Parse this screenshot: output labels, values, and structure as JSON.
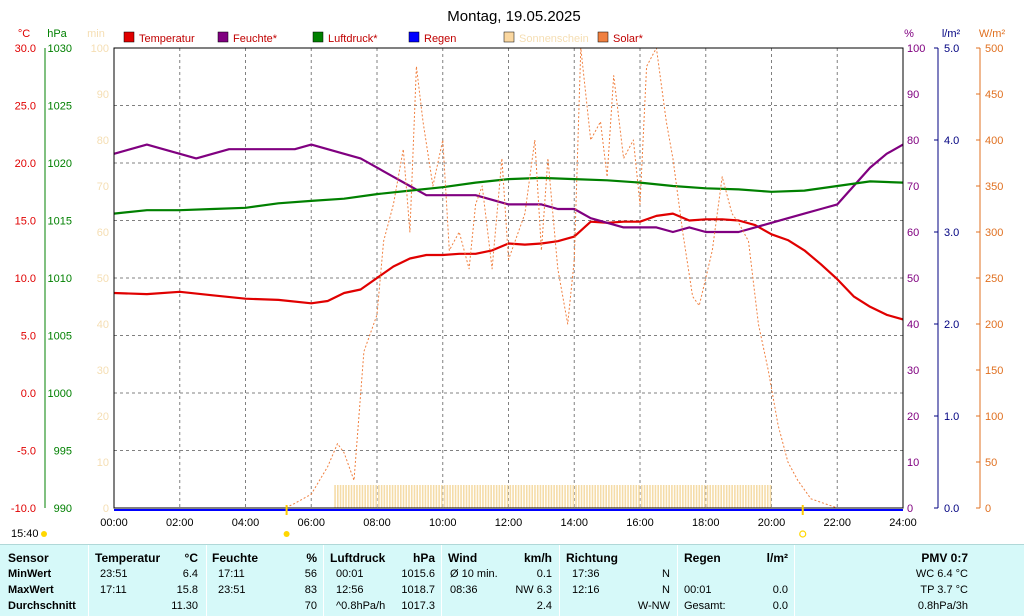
{
  "chart_data": {
    "type": "line",
    "title": "Montag, 19.05.2025",
    "x_ticks": [
      "00:00",
      "02:00",
      "04:00",
      "06:00",
      "08:00",
      "10:00",
      "12:00",
      "14:00",
      "16:00",
      "18:00",
      "20:00",
      "22:00",
      "24:00"
    ],
    "x_range": [
      0,
      24
    ],
    "grid": true,
    "legend": [
      {
        "name": "Temperatur",
        "color": "#e00000"
      },
      {
        "name": "Feuchte*",
        "color": "#800080"
      },
      {
        "name": "Luftdruck*",
        "color": "#008000"
      },
      {
        "name": "Regen",
        "color": "#0000ff"
      },
      {
        "name": "Sonnenschein",
        "color": "#fad7a0"
      },
      {
        "name": "Solar*",
        "color": "#f08040"
      }
    ],
    "axes": {
      "temp": {
        "unit": "°C",
        "color": "#e00000",
        "range": [
          -10,
          30
        ],
        "ticks": [
          "30.0",
          "25.0",
          "20.0",
          "15.0",
          "10.0",
          "5.0",
          "0.0",
          "-5.0",
          "-10.0"
        ]
      },
      "press": {
        "unit": "hPa",
        "color": "#008000",
        "range": [
          990,
          1030
        ],
        "ticks": [
          "1030",
          "1025",
          "1020",
          "1015",
          "1010",
          "1005",
          "1000",
          "995",
          "990"
        ]
      },
      "sun": {
        "unit": "min",
        "color": "#f5deb3",
        "range": [
          0,
          100
        ],
        "ticks": [
          "100",
          "90",
          "80",
          "70",
          "60",
          "50",
          "40",
          "30",
          "20",
          "10",
          "0"
        ]
      },
      "hum": {
        "unit": "%",
        "color": "#800080",
        "range": [
          0,
          100
        ],
        "ticks": [
          "100",
          "90",
          "80",
          "70",
          "60",
          "50",
          "40",
          "30",
          "20",
          "10",
          "0"
        ]
      },
      "rain": {
        "unit": "l/m²",
        "color": "#000080",
        "range": [
          0,
          5
        ],
        "ticks": [
          "5.0",
          "4.0",
          "3.0",
          "2.0",
          "1.0",
          "0.0"
        ]
      },
      "solar": {
        "unit": "W/m²",
        "color": "#e07020",
        "range": [
          0,
          500
        ],
        "ticks": [
          "500",
          "450",
          "400",
          "350",
          "300",
          "250",
          "200",
          "150",
          "100",
          "50",
          "0"
        ]
      }
    },
    "series": [
      {
        "name": "Temperatur",
        "axis": "temp",
        "color": "#e00000",
        "x": [
          0,
          1,
          2,
          3,
          4,
          5,
          6,
          6.5,
          7,
          7.5,
          8,
          8.5,
          9,
          9.5,
          10,
          10.5,
          11,
          11.5,
          12,
          12.5,
          13,
          13.5,
          14,
          14.5,
          15,
          15.5,
          16,
          16.5,
          17,
          17.5,
          18,
          18.5,
          19,
          19.5,
          20,
          20.5,
          21,
          21.5,
          22,
          22.5,
          23,
          23.5,
          24
        ],
        "y": [
          8.7,
          8.6,
          8.8,
          8.5,
          8.2,
          8.1,
          7.8,
          8.0,
          8.7,
          9.0,
          10.0,
          11.0,
          11.7,
          12.0,
          12.0,
          12.1,
          12.1,
          12.4,
          13.0,
          12.9,
          13.0,
          13.2,
          13.6,
          14.9,
          14.8,
          14.9,
          14.9,
          15.4,
          15.6,
          15.0,
          15.1,
          15.1,
          15.0,
          14.6,
          13.8,
          13.3,
          12.4,
          11.2,
          9.9,
          8.4,
          7.5,
          6.8,
          6.4
        ]
      },
      {
        "name": "Feuchte*",
        "axis": "hum",
        "color": "#800080",
        "x": [
          0,
          0.5,
          1,
          1.5,
          2,
          2.5,
          3,
          3.5,
          4,
          4.5,
          5,
          5.5,
          6,
          6.5,
          7,
          7.5,
          8,
          8.5,
          9,
          9.5,
          10,
          10.5,
          11,
          11.5,
          12,
          12.5,
          13,
          13.5,
          14,
          14.5,
          15,
          15.5,
          16,
          16.5,
          17,
          17.5,
          18,
          18.5,
          19,
          19.5,
          20,
          20.5,
          21,
          21.5,
          22,
          22.5,
          23,
          23.5,
          24
        ],
        "y": [
          77,
          78,
          79,
          78,
          77,
          76,
          77,
          78,
          78,
          78,
          78,
          78,
          79,
          78,
          77,
          76,
          74,
          72,
          70,
          68,
          68,
          68,
          68,
          67,
          66,
          66,
          66,
          65,
          65,
          63,
          62,
          61,
          61,
          61,
          60,
          61,
          60,
          60,
          60,
          61,
          62,
          63,
          64,
          65,
          66,
          70,
          74,
          77,
          79
        ]
      },
      {
        "name": "Luftdruck*",
        "axis": "press",
        "color": "#008000",
        "x": [
          0,
          1,
          2,
          3,
          4,
          5,
          6,
          7,
          8,
          9,
          10,
          11,
          12,
          13,
          14,
          15,
          16,
          17,
          18,
          19,
          20,
          21,
          22,
          23,
          24
        ],
        "y": [
          1015.6,
          1015.9,
          1015.9,
          1016.0,
          1016.1,
          1016.5,
          1016.7,
          1016.9,
          1017.3,
          1017.6,
          1017.9,
          1018.3,
          1018.6,
          1018.7,
          1018.6,
          1018.5,
          1018.3,
          1018.0,
          1017.8,
          1017.7,
          1017.5,
          1017.6,
          1018.0,
          1018.4,
          1018.3
        ]
      },
      {
        "name": "Solar*",
        "axis": "solar",
        "color": "#f08040",
        "x": [
          0,
          5.2,
          5.5,
          6,
          6.5,
          6.8,
          7,
          7.3,
          7.6,
          8,
          8.2,
          8.5,
          8.8,
          9,
          9.2,
          9.4,
          9.7,
          10,
          10.2,
          10.5,
          10.8,
          11,
          11.2,
          11.5,
          11.8,
          12,
          12.2,
          12.5,
          12.8,
          13,
          13.2,
          13.5,
          13.8,
          14,
          14.2,
          14.5,
          14.8,
          15,
          15.2,
          15.5,
          15.8,
          16,
          16.2,
          16.5,
          16.8,
          17,
          17.3,
          17.6,
          17.8,
          18,
          18.2,
          18.5,
          18.8,
          19,
          19.3,
          19.6,
          19.9,
          20.2,
          20.5,
          20.8,
          21.2,
          21.6,
          22,
          22.2,
          24
        ],
        "y": [
          0,
          0,
          5,
          15,
          45,
          70,
          60,
          30,
          170,
          210,
          290,
          330,
          390,
          300,
          480,
          420,
          350,
          400,
          280,
          300,
          260,
          330,
          350,
          260,
          380,
          270,
          290,
          320,
          400,
          280,
          380,
          260,
          200,
          270,
          500,
          400,
          420,
          360,
          470,
          380,
          400,
          330,
          480,
          500,
          420,
          380,
          300,
          230,
          220,
          250,
          280,
          360,
          320,
          310,
          290,
          200,
          150,
          90,
          50,
          30,
          10,
          5,
          0,
          0,
          0
        ]
      }
    ],
    "sunshine_bars": {
      "axis": "sun",
      "color": "#f5dca8",
      "from": 6.7,
      "to": 20.0,
      "value": 5
    },
    "markers": {
      "time_label": "15:40",
      "sunrise": "05:15",
      "sunset": "20:57"
    }
  },
  "table": {
    "headers": {
      "sensor": "Sensor",
      "temp": "Temperatur",
      "temp_unit": "°C",
      "hum": "Feuchte",
      "hum_unit": "%",
      "press": "Luftdruck",
      "press_unit": "hPa",
      "wind": "Wind",
      "wind_unit": "km/h",
      "dir": "Richtung",
      "rain": "Regen",
      "rain_unit": "l/m²",
      "pmv": "PMV 0:7"
    },
    "rows": [
      {
        "label": "MinWert",
        "t_time": "23:51",
        "t_val": "6.4",
        "h_time": "17:11",
        "h_val": "56",
        "p_time": "00:01",
        "p_val": "1015.6",
        "w_label": "Ø 10 min.",
        "w_val": "0.1",
        "d_time": "17:36",
        "d_val": "N",
        "r_time": "",
        "r_val": "",
        "pmv": "WC 6.4 °C"
      },
      {
        "label": "MaxWert",
        "t_time": "17:11",
        "t_val": "15.8",
        "h_time": "23:51",
        "h_val": "83",
        "p_time": "12:56",
        "p_val": "1018.7",
        "w_label": "08:36",
        "w_val": "NW 6.3",
        "d_time": "12:16",
        "d_val": "N",
        "r_time": "00:01",
        "r_val": "0.0",
        "pmv": "TP 3.7 °C"
      },
      {
        "label": "Durchschnitt",
        "t_time": "",
        "t_val": "11.30",
        "h_time": "",
        "h_val": "70",
        "p_time": "^0.8hPa/h",
        "p_val": "1017.3",
        "w_label": "",
        "w_val": "2.4",
        "d_time": "",
        "d_val": "W-NW",
        "r_time": "Gesamt:",
        "r_val": "0.0",
        "pmv": "0.8hPa/3h"
      }
    ]
  }
}
